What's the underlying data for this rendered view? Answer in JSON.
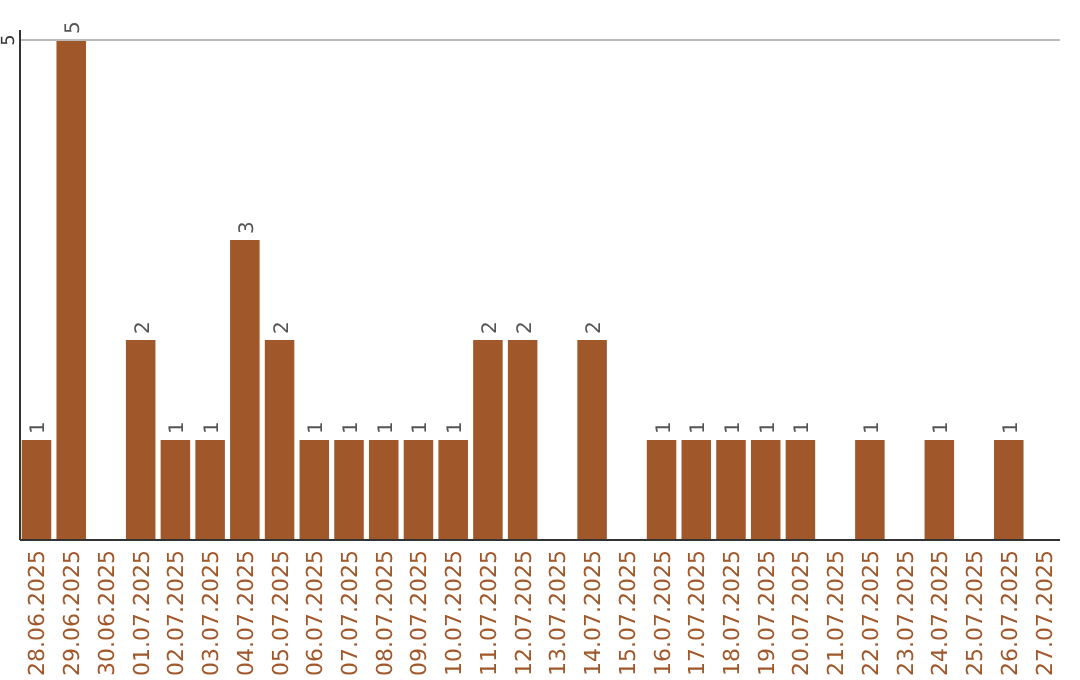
{
  "chart_data": {
    "type": "bar",
    "categories": [
      "28.06.2025",
      "29.06.2025",
      "30.06.2025",
      "01.07.2025",
      "02.07.2025",
      "03.07.2025",
      "04.07.2025",
      "05.07.2025",
      "06.07.2025",
      "07.07.2025",
      "08.07.2025",
      "09.07.2025",
      "10.07.2025",
      "11.07.2025",
      "12.07.2025",
      "13.07.2025",
      "14.07.2025",
      "15.07.2025",
      "16.07.2025",
      "17.07.2025",
      "18.07.2025",
      "19.07.2025",
      "20.07.2025",
      "21.07.2025",
      "22.07.2025",
      "23.07.2025",
      "24.07.2025",
      "25.07.2025",
      "26.07.2025",
      "27.07.2025"
    ],
    "values": [
      1,
      5,
      0,
      2,
      1,
      1,
      3,
      2,
      1,
      1,
      1,
      1,
      1,
      2,
      2,
      0,
      2,
      0,
      1,
      1,
      1,
      1,
      1,
      0,
      1,
      0,
      1,
      0,
      1,
      0
    ],
    "value_labels": [
      "1",
      "5",
      null,
      "2",
      "1",
      "1",
      "3",
      "2",
      "1",
      "1",
      "1",
      "1",
      "1",
      "2",
      "2",
      null,
      "2",
      null,
      "1",
      "1",
      "1",
      "1",
      "1",
      null,
      "1",
      null,
      "1",
      null,
      "1",
      null
    ],
    "color": "#a0572a",
    "ylim": [
      0,
      5.1
    ],
    "yticks": [
      5
    ],
    "grid": "y"
  }
}
